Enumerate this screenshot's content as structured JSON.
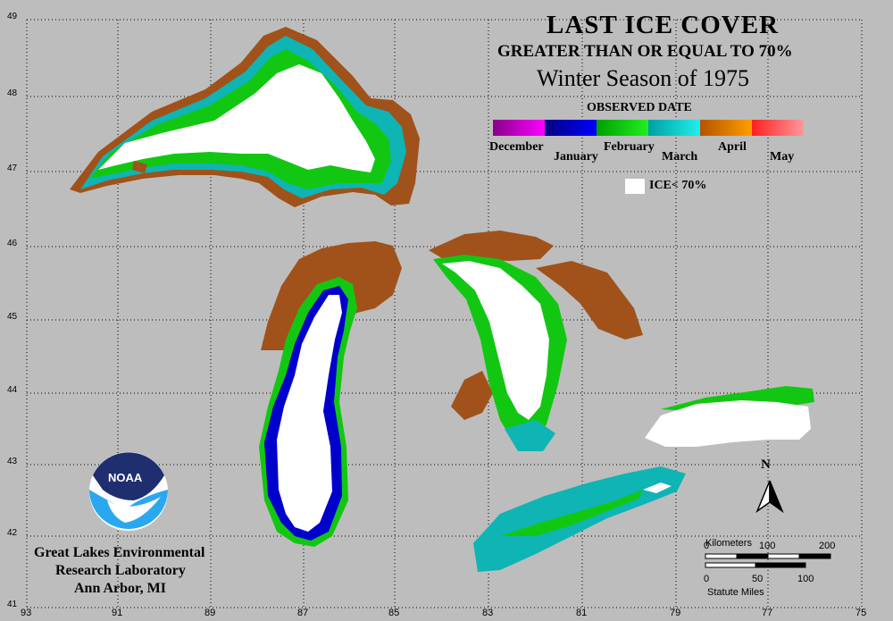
{
  "title": {
    "line1": "LAST ICE COVER",
    "line2": "GREATER THAN OR EQUAL TO 70%",
    "line3": "Winter Season of 1975"
  },
  "legend": {
    "heading": "OBSERVED DATE",
    "months": [
      {
        "label": "December",
        "from": "#8a008a",
        "to": "#ff00ff"
      },
      {
        "label": "January",
        "from": "#000080",
        "to": "#0000ff"
      },
      {
        "label": "February",
        "from": "#00a000",
        "to": "#22ee22"
      },
      {
        "label": "March",
        "from": "#00a0a0",
        "to": "#22eeee"
      },
      {
        "label": "April",
        "from": "#b35400",
        "to": "#ff9e00"
      },
      {
        "label": "May",
        "from": "#ff2020",
        "to": "#ff9999"
      }
    ],
    "ice_label": "ICE< 70%"
  },
  "lab": {
    "line1": "Great Lakes Environmental",
    "line2": "Research Laboratory",
    "line3": "Ann Arbor, MI"
  },
  "logo": {
    "text": "NOAA"
  },
  "latitudes": [
    "49",
    "48",
    "47",
    "46",
    "45",
    "44",
    "43",
    "42",
    "41"
  ],
  "longitudes": [
    "93",
    "91",
    "89",
    "87",
    "85",
    "83",
    "81",
    "79",
    "77",
    "75"
  ],
  "scale": {
    "km_label": "Kilometers",
    "km_ticks": [
      "0",
      "100",
      "200"
    ],
    "mi_label": "Statute Miles",
    "mi_ticks": [
      "0",
      "50",
      "100"
    ],
    "north": "N"
  },
  "colors": {
    "background": "#bdbdbd",
    "ice_below": "#ffffff",
    "march": "#0fb4b4",
    "february": "#12c712",
    "april": "#a0521a",
    "january": "#0000cc"
  }
}
